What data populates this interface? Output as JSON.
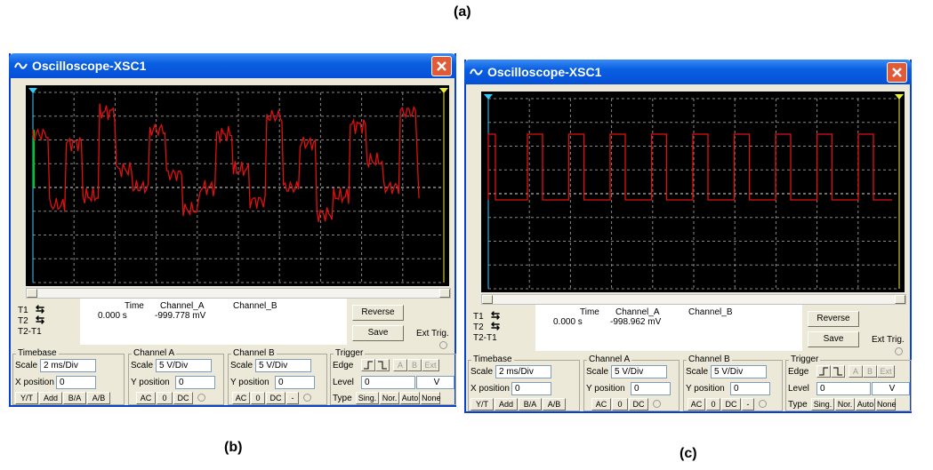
{
  "figure_label": "(a)",
  "windows": [
    {
      "caption": "(b)",
      "title": "Oscilloscope-XSC1",
      "readout": {
        "rows": [
          "T1",
          "T2",
          "T2-T1"
        ],
        "columns": [
          "Time",
          "Channel_A",
          "Channel_B"
        ],
        "time": "0.000 s",
        "channel_a": "-999.778 mV"
      },
      "buttons": [
        "Reverse",
        "Save"
      ],
      "ext_trig": "Ext Trig.",
      "timebase": {
        "title": "Timebase",
        "scale_label": "Scale",
        "scale": "2 ms/Div",
        "position_label": "X position",
        "position": "0",
        "modes": [
          "Y/T",
          "Add",
          "B/A",
          "A/B"
        ]
      },
      "channel_a": {
        "title": "Channel A",
        "scale_label": "Scale",
        "scale": "5 V/Div",
        "position_label": "Y position",
        "position": "0",
        "coupling": [
          "AC",
          "0",
          "DC"
        ]
      },
      "channel_b": {
        "title": "Channel B",
        "scale_label": "Scale",
        "scale": "5 V/Div",
        "position_label": "Y position",
        "position": "0",
        "coupling": [
          "AC",
          "0",
          "DC",
          "-"
        ]
      },
      "trigger": {
        "title": "Trigger",
        "edge_label": "Edge",
        "sources": [
          "A",
          "B",
          "Ext"
        ],
        "level_label": "Level",
        "level": "0",
        "level_unit": "V",
        "type_label": "Type",
        "types": [
          "Sing.",
          "Nor.",
          "Auto",
          "None"
        ]
      }
    },
    {
      "caption": "(c)",
      "title": "Oscilloscope-XSC1",
      "readout": {
        "rows": [
          "T1",
          "T2",
          "T2-T1"
        ],
        "columns": [
          "Time",
          "Channel_A",
          "Channel_B"
        ],
        "time": "0.000 s",
        "channel_a": "-998.962 mV"
      },
      "buttons": [
        "Reverse",
        "Save"
      ],
      "ext_trig": "Ext Trig.",
      "timebase": {
        "title": "Timebase",
        "scale_label": "Scale",
        "scale": "2 ms/Div",
        "position_label": "X position",
        "position": "0",
        "modes": [
          "Y/T",
          "Add",
          "B/A",
          "A/B"
        ]
      },
      "channel_a": {
        "title": "Channel A",
        "scale_label": "Scale",
        "scale": "5 V/Div",
        "position_label": "Y position",
        "position": "0",
        "coupling": [
          "AC",
          "0",
          "DC"
        ]
      },
      "channel_b": {
        "title": "Channel B",
        "scale_label": "Scale",
        "scale": "5 V/Div",
        "position_label": "Y position",
        "position": "0",
        "coupling": [
          "AC",
          "0",
          "DC",
          "-"
        ]
      },
      "trigger": {
        "title": "Trigger",
        "edge_label": "Edge",
        "sources": [
          "A",
          "B",
          "Ext"
        ],
        "level_label": "Level",
        "level": "0",
        "level_unit": "V",
        "type_label": "Type",
        "types": [
          "Sing.",
          "Nor.",
          "Auto",
          "None"
        ]
      }
    }
  ]
}
